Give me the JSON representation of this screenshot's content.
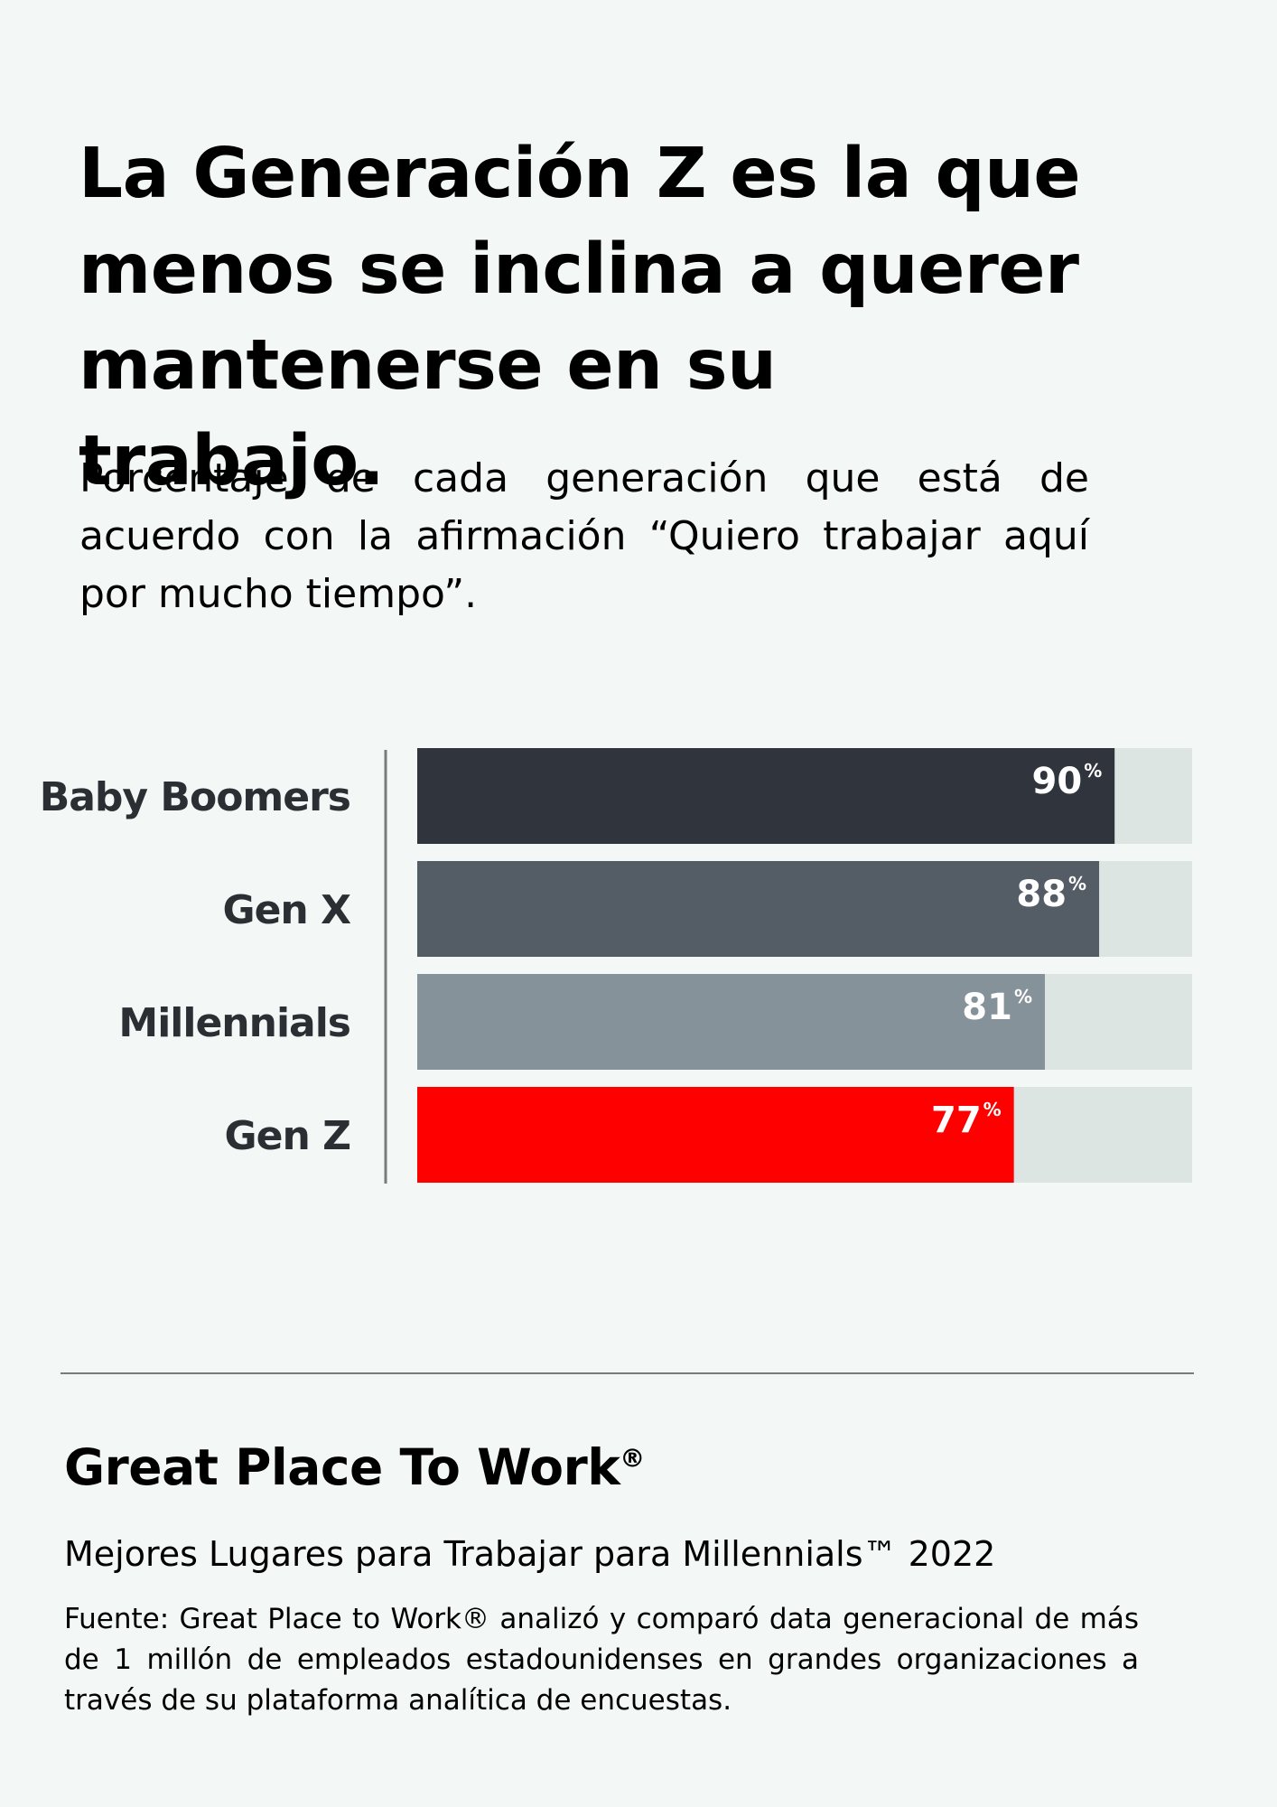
{
  "headline": "La Generación Z es la que menos se inclina a querer mantenerse en su trabajo.",
  "subtitle": "Porcentaje de cada generación que está de acuerdo con la afirmación “Quiero trabajar aquí por mucho tiempo”.",
  "chart_data": {
    "type": "bar",
    "orientation": "horizontal",
    "categories": [
      "Baby Boomers",
      "Gen X",
      "Millennials",
      "Gen Z"
    ],
    "values": [
      90,
      88,
      81,
      77
    ],
    "value_labels": [
      "90",
      "88",
      "81",
      "77"
    ],
    "value_suffix": "%",
    "xlim": [
      0,
      100
    ],
    "colors": [
      "#30353d",
      "#545c65",
      "#86929a",
      "#ff0000"
    ],
    "track_color": "#dde5e3",
    "axis_color": "#777d7c"
  },
  "footer": {
    "brand": "Great Place To Work",
    "brand_mark": "®",
    "list_name": "Mejores Lugares para Trabajar para Millennials™  2022",
    "source": "Fuente: Great Place to Work® analizó y comparó data generacional de más de 1 millón de empleados estadounidenses en grandes organizaciones a través de su plataforma analítica de encuestas."
  }
}
